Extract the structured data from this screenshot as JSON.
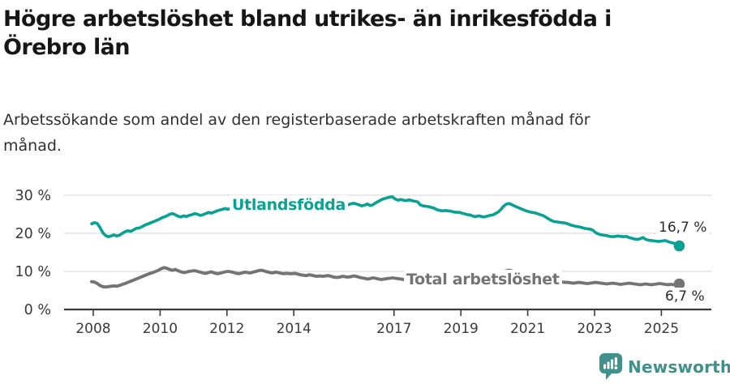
{
  "title_lines": [
    "Högre arbetslöshet bland utrikes- än inrikesfödda i",
    "Örebro län"
  ],
  "subtitle_lines": [
    "Arbetssökande som andel av den registerbaserade arbetskraften månad för",
    "månad."
  ],
  "chart_data": {
    "type": "line",
    "title": "Högre arbetslöshet bland utrikes- än inrikesfödda i Örebro län",
    "subtitle": "Arbetssökande som andel av den registerbaserade arbetskraften månad för månad.",
    "unit": "%",
    "frequency": "monthly",
    "x_start": "2008-01",
    "x_end": "2025-08",
    "ylim": [
      0,
      32
    ],
    "grid": "horizontal",
    "ytick_values": [
      0,
      10,
      20,
      30
    ],
    "yticks": [
      "0 %",
      "10 %",
      "20 %",
      "30 %"
    ],
    "xticks": [
      2008,
      2010,
      2012,
      2014,
      2017,
      2019,
      2021,
      2023,
      2025
    ],
    "series": [
      {
        "name": "Utlandsfödda",
        "color": "#0aa195",
        "end_value": 16.7,
        "end_label": "16,7 %",
        "values": [
          22.5,
          22.8,
          22.6,
          21.5,
          20.2,
          19.4,
          19.1,
          19.3,
          19.6,
          19.3,
          19.5,
          20.0,
          20.4,
          20.7,
          20.5,
          20.9,
          21.3,
          21.4,
          21.7,
          22.1,
          22.4,
          22.7,
          23.0,
          23.3,
          23.6,
          24.0,
          24.3,
          24.6,
          25.0,
          25.2,
          24.9,
          24.5,
          24.3,
          24.6,
          24.4,
          24.7,
          24.9,
          25.2,
          25.0,
          24.7,
          24.9,
          25.2,
          25.5,
          25.3,
          25.6,
          25.9,
          26.1,
          26.3,
          26.5,
          26.3,
          26.6,
          26.4,
          26.2,
          26.5,
          26.7,
          26.5,
          26.3,
          26.6,
          26.4,
          26.6,
          26.5,
          26.8,
          26.6,
          26.4,
          26.7,
          26.9,
          26.7,
          26.5,
          26.8,
          27.0,
          26.8,
          26.6,
          26.9,
          27.1,
          26.9,
          26.7,
          27.0,
          27.2,
          27.0,
          26.8,
          27.1,
          27.3,
          27.1,
          27.4,
          27.2,
          27.5,
          27.3,
          27.1,
          27.4,
          27.6,
          27.4,
          27.2,
          27.5,
          27.7,
          27.9,
          27.7,
          27.5,
          27.2,
          27.4,
          27.7,
          27.3,
          27.5,
          28.0,
          28.4,
          28.8,
          29.1,
          29.3,
          29.5,
          29.6,
          29.0,
          28.7,
          28.9,
          28.7,
          28.6,
          28.8,
          28.6,
          28.4,
          28.3,
          27.5,
          27.2,
          27.1,
          27.0,
          26.8,
          26.6,
          26.2,
          26.0,
          25.9,
          26.0,
          25.9,
          25.8,
          25.6,
          25.5,
          25.5,
          25.3,
          25.1,
          24.9,
          24.8,
          24.5,
          24.4,
          24.6,
          24.4,
          24.3,
          24.5,
          24.7,
          24.8,
          25.2,
          25.6,
          26.3,
          27.2,
          27.7,
          27.8,
          27.5,
          27.1,
          26.8,
          26.5,
          26.2,
          25.9,
          25.7,
          25.5,
          25.4,
          25.2,
          24.9,
          24.7,
          24.3,
          23.8,
          23.4,
          23.1,
          23.0,
          22.9,
          22.8,
          22.7,
          22.5,
          22.2,
          22.0,
          21.8,
          21.7,
          21.5,
          21.3,
          21.2,
          21.1,
          20.8,
          20.2,
          19.8,
          19.6,
          19.5,
          19.4,
          19.2,
          19.1,
          19.2,
          19.3,
          19.2,
          19.1,
          19.2,
          18.9,
          18.7,
          18.5,
          18.4,
          18.6,
          18.9,
          18.4,
          18.2,
          18.1,
          18.0,
          17.9,
          17.9,
          18.0,
          18.1,
          17.8,
          17.6,
          17.4,
          17.1,
          16.7
        ]
      },
      {
        "name": "Total arbetslöshet",
        "color": "#747474",
        "end_value": 6.7,
        "end_label": "6,7 %",
        "values": [
          7.3,
          7.2,
          6.8,
          6.3,
          6.0,
          5.9,
          6.0,
          6.1,
          6.2,
          6.1,
          6.3,
          6.6,
          6.8,
          7.1,
          7.4,
          7.7,
          8.0,
          8.3,
          8.6,
          8.9,
          9.2,
          9.5,
          9.7,
          10.0,
          10.3,
          10.7,
          11.0,
          10.8,
          10.5,
          10.3,
          10.5,
          10.2,
          9.9,
          9.7,
          9.8,
          10.0,
          10.1,
          10.2,
          10.0,
          9.8,
          9.6,
          9.5,
          9.7,
          9.9,
          9.6,
          9.4,
          9.5,
          9.7,
          9.9,
          10.0,
          9.9,
          9.7,
          9.5,
          9.4,
          9.6,
          9.8,
          9.7,
          9.6,
          9.8,
          10.0,
          10.2,
          10.3,
          10.1,
          9.9,
          9.7,
          9.6,
          9.8,
          9.7,
          9.5,
          9.4,
          9.5,
          9.4,
          9.4,
          9.5,
          9.3,
          9.1,
          9.0,
          8.9,
          9.1,
          9.0,
          8.8,
          8.7,
          8.8,
          8.7,
          8.8,
          8.9,
          8.7,
          8.5,
          8.4,
          8.5,
          8.7,
          8.6,
          8.5,
          8.6,
          8.8,
          8.7,
          8.5,
          8.3,
          8.2,
          8.0,
          8.1,
          8.3,
          8.2,
          8.0,
          7.9,
          8.0,
          8.1,
          8.2,
          8.3,
          8.2,
          8.1,
          8.0,
          7.9,
          8.0,
          8.1,
          8.0,
          7.9,
          7.8,
          7.7,
          7.8,
          7.8,
          7.7,
          7.6,
          7.5,
          7.4,
          7.5,
          7.6,
          7.5,
          7.4,
          7.3,
          7.4,
          7.5,
          7.5,
          7.4,
          7.3,
          7.3,
          7.2,
          7.3,
          7.5,
          7.4,
          7.3,
          7.4,
          7.5,
          7.6,
          7.8,
          8.0,
          8.6,
          9.4,
          9.9,
          10.2,
          10.3,
          10.1,
          9.8,
          9.6,
          9.4,
          9.3,
          9.2,
          9.1,
          8.9,
          8.7,
          8.5,
          8.3,
          8.2,
          8.0,
          7.8,
          7.6,
          7.5,
          7.4,
          7.3,
          7.2,
          7.1,
          7.1,
          7.0,
          6.9,
          7.0,
          7.1,
          7.0,
          6.9,
          6.8,
          6.9,
          7.0,
          7.1,
          7.0,
          6.9,
          6.8,
          6.7,
          6.8,
          6.9,
          6.8,
          6.7,
          6.6,
          6.7,
          6.8,
          6.9,
          6.8,
          6.7,
          6.6,
          6.5,
          6.6,
          6.7,
          6.6,
          6.5,
          6.6,
          6.7,
          6.8,
          6.7,
          6.6,
          6.5,
          6.6,
          6.5,
          6.6,
          6.7
        ]
      }
    ],
    "colors": {
      "gridline": "#dcdcdc",
      "axis": "#3a3a3a",
      "tick_label": "#3a3a3a"
    }
  },
  "footer": {
    "brand": "Newsworthy",
    "brand_color": "#40918b",
    "logo_icon": "bar-chart-speech-bubble"
  }
}
